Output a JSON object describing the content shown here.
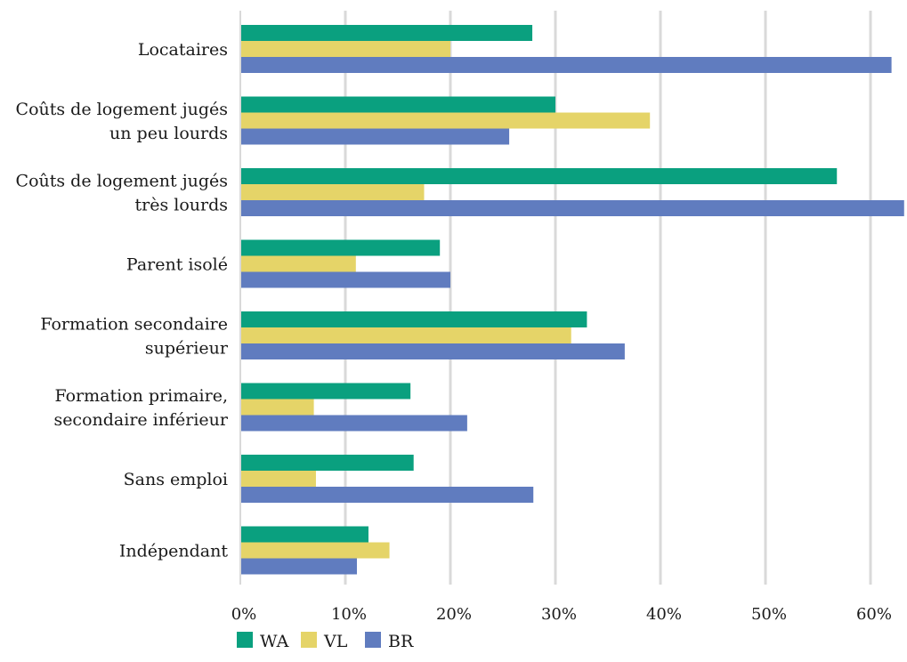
{
  "chart_data": {
    "type": "bar",
    "orientation": "horizontal",
    "title": "",
    "xlabel": "",
    "ylabel": "",
    "xlim": [
      0,
      0.63
    ],
    "x_ticks": [
      "0%",
      "10%",
      "20%",
      "30%",
      "40%",
      "50%",
      "60%"
    ],
    "x_tick_values": [
      0,
      0.1,
      0.2,
      0.3,
      0.4,
      0.5,
      0.6
    ],
    "grid": true,
    "legend_position": "bottom-left",
    "categories": [
      [
        "Locataires"
      ],
      [
        "Coûts de logement jugés",
        "un peu lourds"
      ],
      [
        "Coûts de logement jugés",
        "très lourds"
      ],
      [
        "Parent isolé"
      ],
      [
        "Formation secondaire",
        "supérieur"
      ],
      [
        "Formation primaire,",
        "secondaire inférieur"
      ],
      [
        "Sans emploi"
      ],
      [
        "Indépendant"
      ]
    ],
    "series": [
      {
        "name": "WA",
        "color": "#0aa07f",
        "values": [
          0.278,
          0.3,
          0.568,
          0.19,
          0.33,
          0.162,
          0.165,
          0.122
        ]
      },
      {
        "name": "VL",
        "color": "#e5d468",
        "values": [
          0.2,
          0.39,
          0.175,
          0.11,
          0.315,
          0.07,
          0.072,
          0.142
        ]
      },
      {
        "name": "BR",
        "color": "#607cbf",
        "values": [
          0.62,
          0.256,
          0.632,
          0.2,
          0.366,
          0.216,
          0.279,
          0.111
        ]
      }
    ]
  }
}
